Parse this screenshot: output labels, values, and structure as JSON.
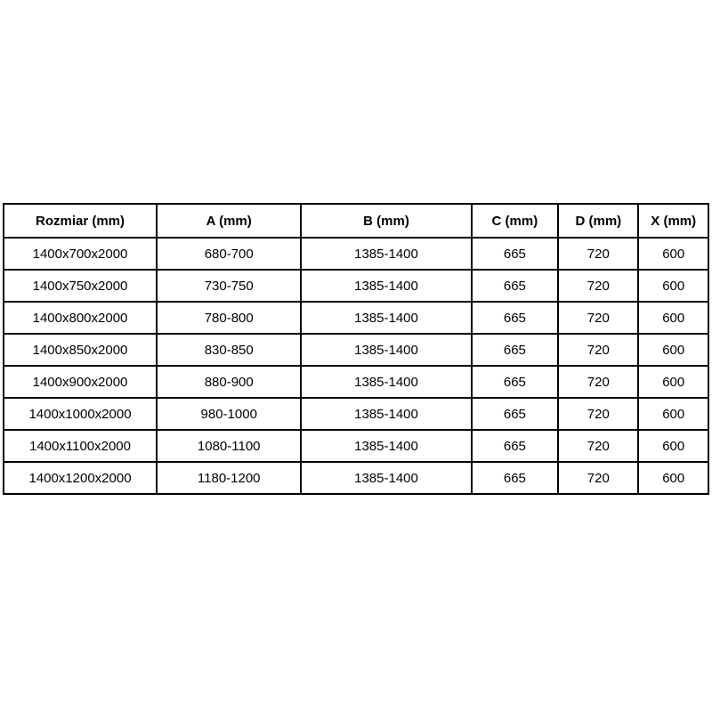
{
  "chart_data": {
    "type": "table",
    "columns": [
      "Rozmiar (mm)",
      "A (mm)",
      "B (mm)",
      "C (mm)",
      "D (mm)",
      "X (mm)"
    ],
    "rows": [
      [
        "1400x700x2000",
        "680-700",
        "1385-1400",
        "665",
        "720",
        "600"
      ],
      [
        "1400x750x2000",
        "730-750",
        "1385-1400",
        "665",
        "720",
        "600"
      ],
      [
        "1400x800x2000",
        "780-800",
        "1385-1400",
        "665",
        "720",
        "600"
      ],
      [
        "1400x850x2000",
        "830-850",
        "1385-1400",
        "665",
        "720",
        "600"
      ],
      [
        "1400x900x2000",
        "880-900",
        "1385-1400",
        "665",
        "720",
        "600"
      ],
      [
        "1400x1000x2000",
        "980-1000",
        "1385-1400",
        "665",
        "720",
        "600"
      ],
      [
        "1400x1100x2000",
        "1080-1100",
        "1385-1400",
        "665",
        "720",
        "600"
      ],
      [
        "1400x1200x2000",
        "1180-1200",
        "1385-1400",
        "665",
        "720",
        "600"
      ]
    ],
    "title": "",
    "layout": {
      "grid": "full-borders",
      "header_style": "bold",
      "border_color": "#000000",
      "background_color": "#ffffff",
      "text_color": "#000000"
    }
  }
}
